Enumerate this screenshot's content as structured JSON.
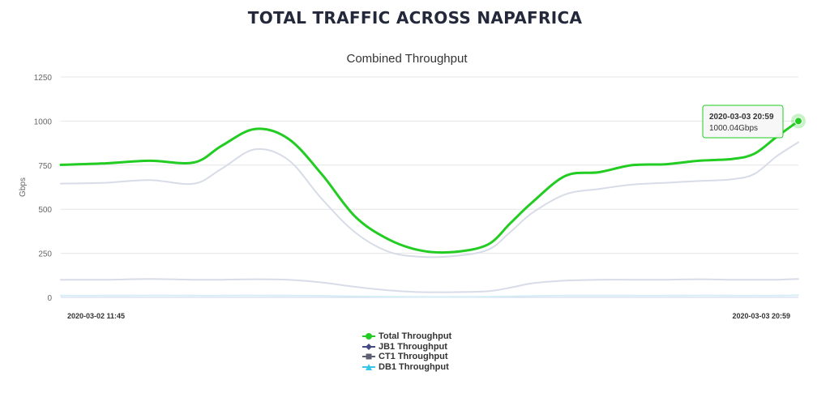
{
  "page": {
    "title": "TOTAL TRAFFIC ACROSS NAPAFRICA"
  },
  "chart_data": {
    "type": "line",
    "title": "Combined Throughput",
    "ylabel": "Gbps",
    "xlabel": "",
    "ylim": [
      0,
      1250
    ],
    "yticks": [
      0,
      250,
      500,
      750,
      1000,
      1250
    ],
    "xlim": [
      "2020-03-02 11:45",
      "2020-03-03 20:59"
    ],
    "x_tick_labels": [
      "2020-03-02 11:45",
      "2020-03-03 20:59"
    ],
    "grid": true,
    "legend": "bottom-center",
    "tooltip": {
      "time": "2020-03-03 20:59",
      "value": "1000.04Gbps"
    },
    "x": [
      "2020-03-02 11:45",
      "2020-03-02 13:45",
      "2020-03-02 15:45",
      "2020-03-02 17:45",
      "2020-03-02 19:00",
      "2020-03-02 20:30",
      "2020-03-02 22:00",
      "2020-03-02 23:30",
      "2020-03-03 01:00",
      "2020-03-03 02:30",
      "2020-03-03 04:00",
      "2020-03-03 05:30",
      "2020-03-03 07:00",
      "2020-03-03 08:00",
      "2020-03-03 09:00",
      "2020-03-03 10:30",
      "2020-03-03 12:00",
      "2020-03-03 13:30",
      "2020-03-03 15:00",
      "2020-03-03 16:30",
      "2020-03-03 18:00",
      "2020-03-03 19:00",
      "2020-03-03 20:00",
      "2020-03-03 20:59"
    ],
    "series": [
      {
        "name": "Total Throughput",
        "color": "#22cc22",
        "values": [
          752,
          760,
          775,
          765,
          860,
          955,
          900,
          700,
          460,
          330,
          265,
          258,
          300,
          420,
          540,
          690,
          710,
          750,
          755,
          775,
          785,
          815,
          910,
          1000.04
        ]
      },
      {
        "name": "JB1 Throughput",
        "color": "#d8dce8",
        "values": [
          645,
          650,
          665,
          645,
          730,
          840,
          780,
          560,
          370,
          260,
          230,
          235,
          270,
          370,
          480,
          585,
          615,
          640,
          650,
          660,
          670,
          700,
          800,
          880
        ]
      },
      {
        "name": "CT1 Throughput",
        "color": "#d8dce8",
        "values": [
          100,
          100,
          105,
          100,
          100,
          103,
          100,
          85,
          60,
          40,
          30,
          30,
          35,
          55,
          80,
          95,
          100,
          100,
          100,
          103,
          100,
          100,
          100,
          105
        ]
      },
      {
        "name": "DB1 Throughput",
        "color": "#d6eef5",
        "values": [
          10,
          10,
          11,
          10,
          10,
          11,
          10,
          9,
          6,
          4,
          3,
          3,
          4,
          6,
          8,
          10,
          10,
          10,
          10,
          11,
          10,
          10,
          10,
          12
        ]
      }
    ]
  },
  "legend_items": [
    {
      "label": "Total Throughput",
      "symbol": "circle",
      "color": "#22cc22"
    },
    {
      "label": "JB1 Throughput",
      "symbol": "diamond",
      "color": "#434a84"
    },
    {
      "label": "CT1 Throughput",
      "symbol": "square",
      "color": "#5b6073"
    },
    {
      "label": "DB1 Throughput",
      "symbol": "triangle",
      "color": "#38c6e8"
    }
  ]
}
